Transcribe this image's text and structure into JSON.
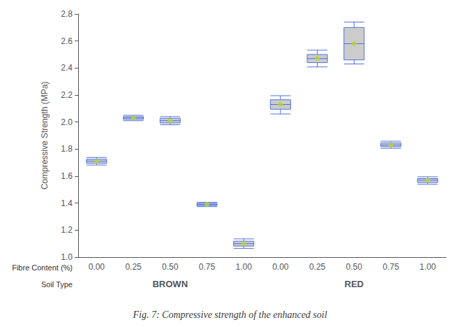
{
  "chart_data": {
    "type": "boxplot",
    "title": "Fig. 7: Compressive strength of the enhanced soil",
    "ylabel": "Compressive Strength (MPa)",
    "xlabel": "Fibre Content (%)",
    "group_label": "Soil Type",
    "categories": [
      "0.00",
      "0.25",
      "0.50",
      "0.75",
      "1.00",
      "0.00",
      "0.25",
      "0.50",
      "0.75",
      "1.00"
    ],
    "groups": [
      "BROWN",
      "BROWN",
      "BROWN",
      "BROWN",
      "BROWN",
      "RED",
      "RED",
      "RED",
      "RED",
      "RED"
    ],
    "values": [
      {
        "low": 1.682,
        "q1": 1.695,
        "median": 1.71,
        "q3": 1.725,
        "high": 1.738
      },
      {
        "low": 2.01,
        "q1": 2.02,
        "median": 2.03,
        "q3": 2.04,
        "high": 2.05
      },
      {
        "low": 1.98,
        "q1": 1.993,
        "median": 2.01,
        "q3": 2.028,
        "high": 2.04
      },
      {
        "low": 1.374,
        "q1": 1.382,
        "median": 1.39,
        "q3": 1.398,
        "high": 1.406
      },
      {
        "low": 1.065,
        "q1": 1.082,
        "median": 1.1,
        "q3": 1.118,
        "high": 1.135
      },
      {
        "low": 2.06,
        "q1": 2.095,
        "median": 2.13,
        "q3": 2.165,
        "high": 2.195
      },
      {
        "low": 2.408,
        "q1": 2.44,
        "median": 2.47,
        "q3": 2.5,
        "high": 2.532
      },
      {
        "low": 2.43,
        "q1": 2.46,
        "median": 2.58,
        "q3": 2.7,
        "high": 2.74
      },
      {
        "low": 1.806,
        "q1": 1.818,
        "median": 1.83,
        "q3": 1.845,
        "high": 1.858
      },
      {
        "low": 1.54,
        "q1": 1.553,
        "median": 1.57,
        "q3": 1.582,
        "high": 1.595
      }
    ],
    "color": "#cccccc",
    "marker": "circle",
    "ylim": [
      1.0,
      2.8
    ],
    "yticks": [
      {
        "value": 1.0,
        "label": "1.0"
      },
      1.2,
      1.4,
      1.6,
      1.8,
      {
        "value": 2.0,
        "label": "2.0"
      },
      2.2,
      2.4,
      2.6,
      2.8
    ],
    "grid": false
  }
}
